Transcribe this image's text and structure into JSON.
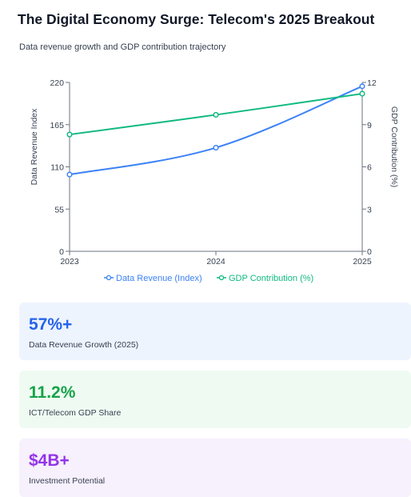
{
  "header": {
    "title": "The Digital Economy Surge: Telecom's 2025 Breakout",
    "subtitle": "Data revenue growth and GDP contribution trajectory"
  },
  "chart_data": {
    "type": "line",
    "x": [
      "2023",
      "2024",
      "2025"
    ],
    "series": [
      {
        "name": "Data Revenue (Index)",
        "axis": "left",
        "values": [
          100,
          135,
          215
        ],
        "color": "#3b82f6"
      },
      {
        "name": "GDP Contribution (%)",
        "axis": "right",
        "values": [
          8.3,
          9.7,
          11.2
        ],
        "color": "#10b981"
      }
    ],
    "ylabel_left": "Data Revenue Index",
    "ylabel_right": "GDP Contribution (%)",
    "ylim_left": [
      0,
      220
    ],
    "yticks_left": [
      "0",
      "55",
      "110",
      "165",
      "220"
    ],
    "ylim_right": [
      0,
      12
    ],
    "yticks_right": [
      "0",
      "3",
      "6",
      "9",
      "12"
    ],
    "grid": false,
    "legend": "bottom"
  },
  "stats": [
    {
      "value": "57%+",
      "label": "Data Revenue Growth (2025)",
      "color": "#2563eb"
    },
    {
      "value": "11.2%",
      "label": "ICT/Telecom GDP Share",
      "color": "#16a34a"
    },
    {
      "value": "$4B+",
      "label": "Investment Potential",
      "color": "#9333ea"
    }
  ]
}
